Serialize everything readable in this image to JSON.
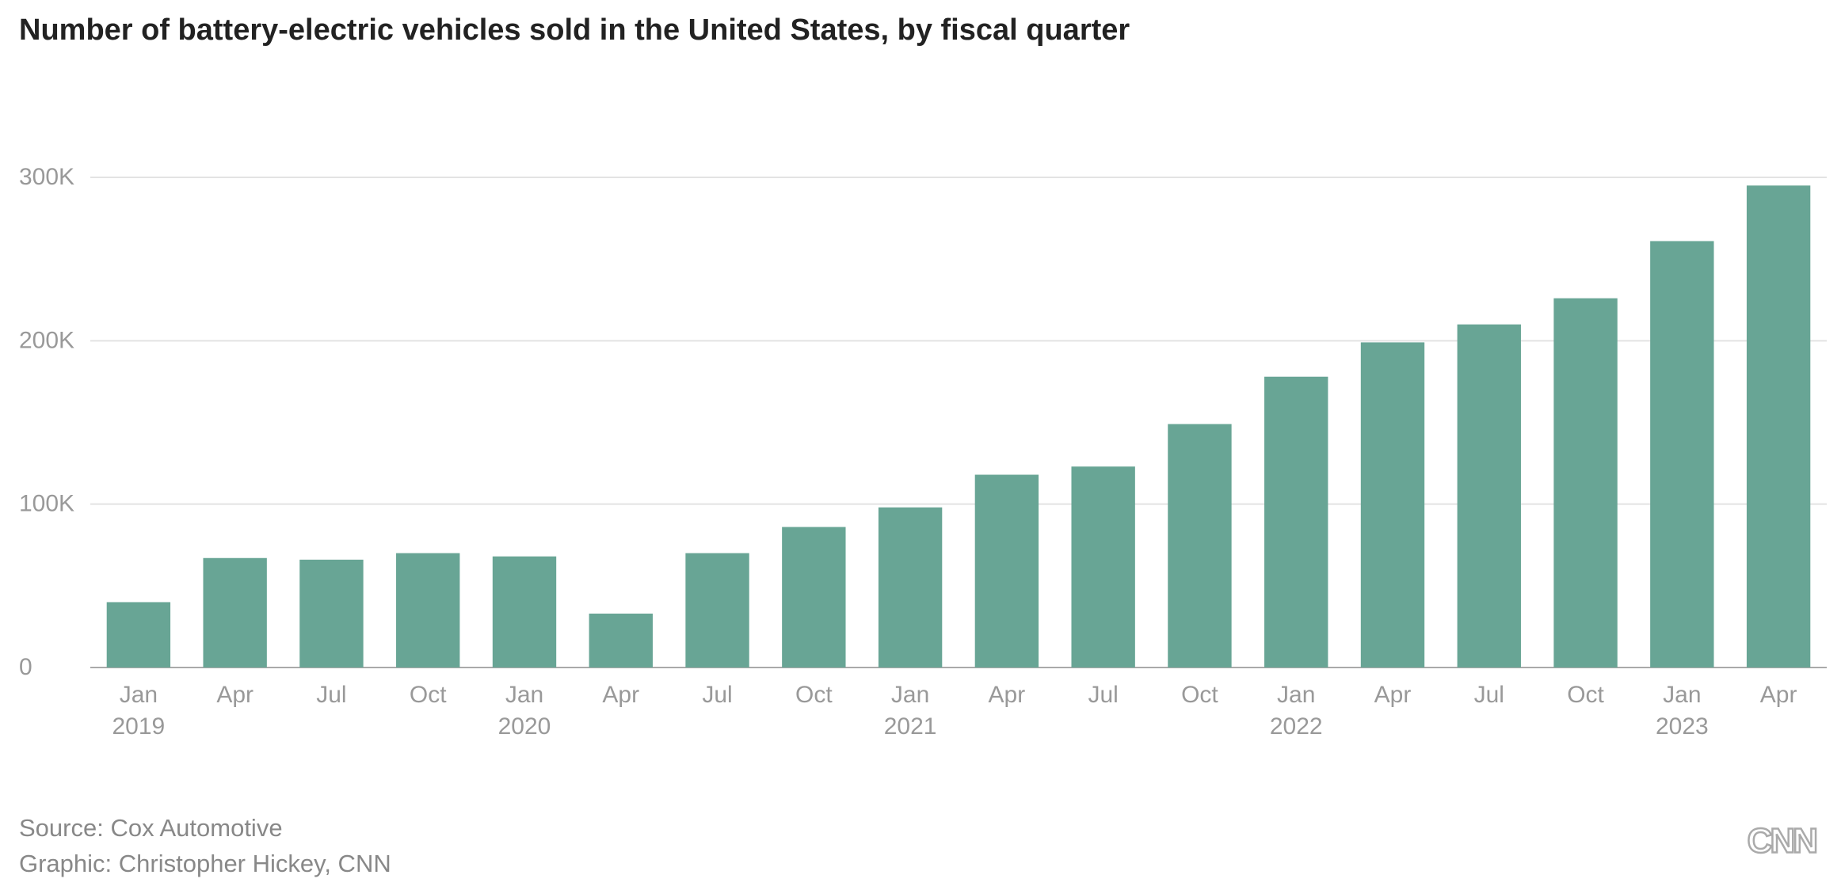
{
  "chart_data": {
    "type": "bar",
    "title": "Number of battery-electric vehicles sold in the United States, by fiscal quarter",
    "categories": [
      "Jan 2019",
      "Apr",
      "Jul",
      "Oct",
      "Jan 2020",
      "Apr",
      "Jul",
      "Oct",
      "Jan 2021",
      "Apr",
      "Jul",
      "Oct",
      "Jan 2022",
      "Apr",
      "Jul",
      "Oct",
      "Jan 2023",
      "Apr"
    ],
    "values": [
      40000,
      67000,
      66000,
      70000,
      68000,
      33000,
      70000,
      86000,
      98000,
      118000,
      123000,
      149000,
      178000,
      199000,
      210000,
      226000,
      261000,
      295000
    ],
    "color": "#68a595",
    "ylim": [
      0,
      300000
    ],
    "yticks": [
      0,
      {
        "value": 100000,
        "label": "100K"
      },
      {
        "value": 200000,
        "label": "200K"
      },
      {
        "value": 300000,
        "label": "300K"
      }
    ],
    "grid": true,
    "source": "Source: Cox Automotive",
    "credit": "Graphic: Christopher Hickey, CNN",
    "logo": "CNN"
  }
}
